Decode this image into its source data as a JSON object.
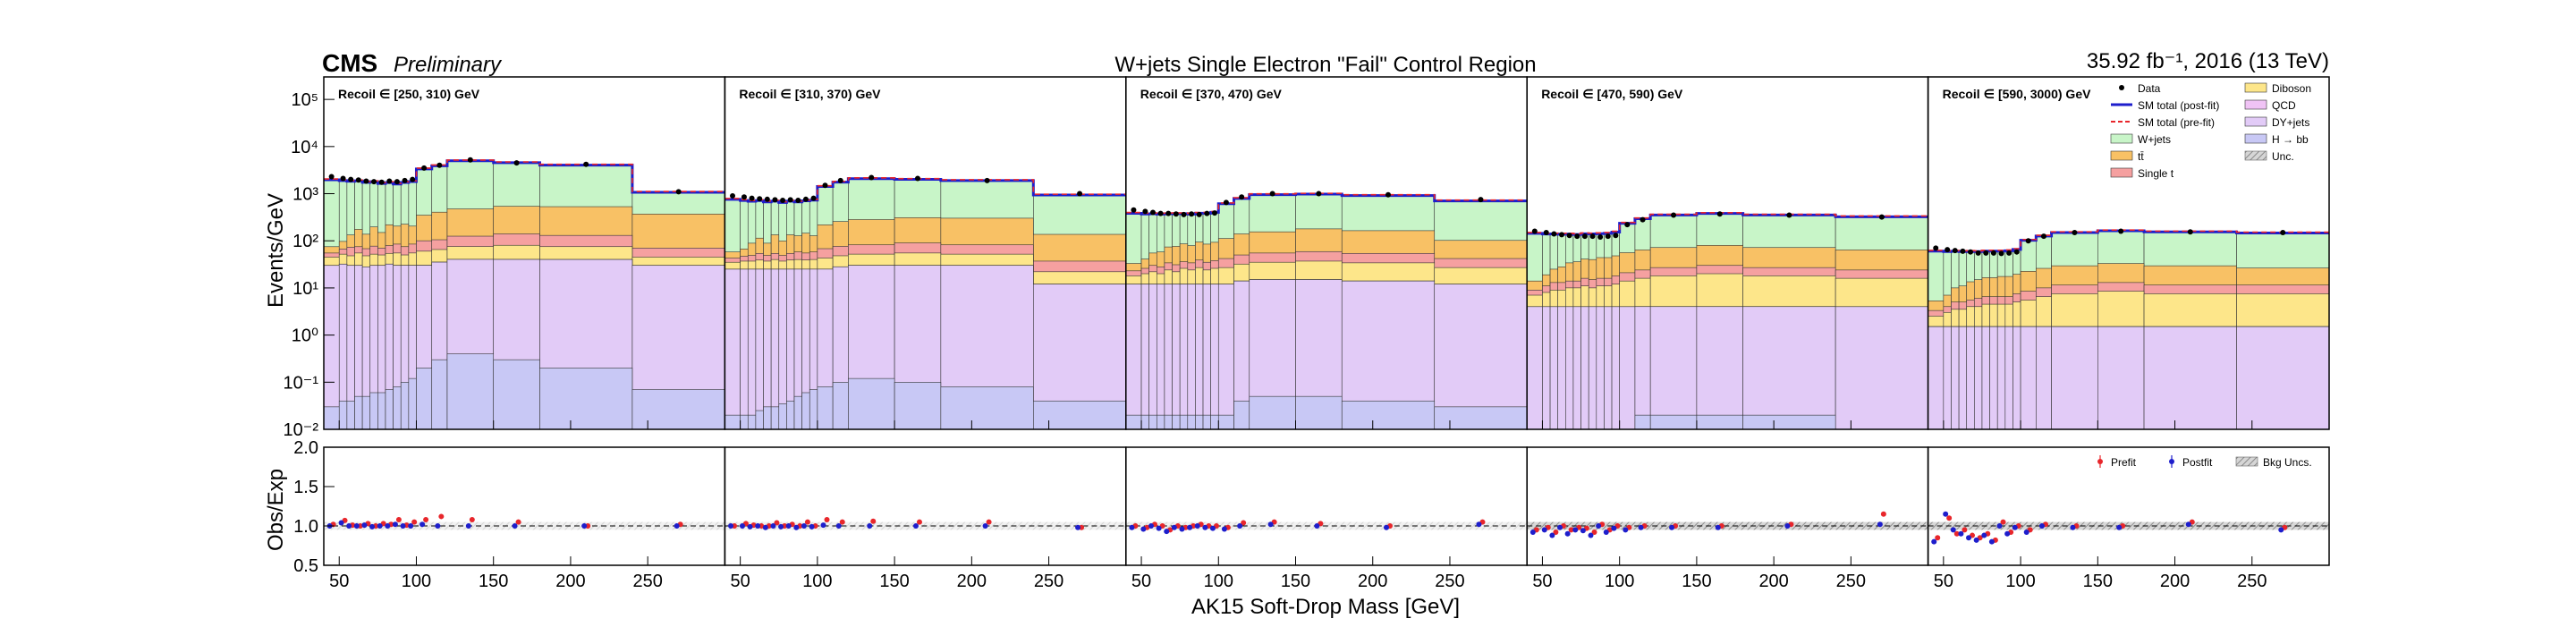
{
  "header": {
    "cms": "CMS",
    "preliminary": "Preliminary",
    "title": "W+jets Single Electron \"Fail\" Control Region",
    "lumi": "35.92 fb⁻¹, 2016 (13 TeV)"
  },
  "axes": {
    "ylabel_main": "Events/GeV",
    "ylabel_ratio": "Obs/Exp",
    "xlabel": "AK15 Soft-Drop Mass [GeV]",
    "x_ticks": [
      "50",
      "100",
      "150",
      "200",
      "250"
    ],
    "y_ticks_main": [
      "10⁻²",
      "10⁻¹",
      "10⁰",
      "10¹",
      "10²",
      "10³",
      "10⁴",
      "10⁵"
    ],
    "y_ticks_ratio": [
      "0.5",
      "1.0",
      "1.5",
      "2.0"
    ]
  },
  "legend_main": [
    {
      "label": "Data",
      "kind": "point",
      "color": "#000000"
    },
    {
      "label": "Diboson",
      "kind": "box",
      "color": "#fde68a"
    },
    {
      "label": "SM total (post-fit)",
      "kind": "line",
      "color": "#1e1ecc"
    },
    {
      "label": "QCD",
      "kind": "box",
      "color": "#f0c3f5"
    },
    {
      "label": "SM total (pre-fit)",
      "kind": "dash",
      "color": "#e8262b"
    },
    {
      "label": "DY+jets",
      "kind": "box",
      "color": "#e2cbf7"
    },
    {
      "label": "W+jets",
      "kind": "box",
      "color": "#c8f5c8"
    },
    {
      "label": "H → bb",
      "kind": "box",
      "color": "#c8c8f5"
    },
    {
      "label": "tt̄",
      "kind": "box",
      "color": "#f8c165"
    },
    {
      "label": "Unc.",
      "kind": "hatch",
      "color": "#999999"
    },
    {
      "label": "Single t",
      "kind": "box",
      "color": "#f5a0a0"
    }
  ],
  "legend_ratio": [
    {
      "label": "Prefit",
      "color": "#e8262b"
    },
    {
      "label": "Postfit",
      "color": "#1e1ecc"
    },
    {
      "label": "Bkg Uncs.",
      "color": "#999999"
    }
  ],
  "chart_data": {
    "type": "bar",
    "ylabel": "Events/GeV",
    "yscale": "log",
    "ylim": [
      0.01,
      300000
    ],
    "ratio_ylim": [
      0.5,
      2.0
    ],
    "xlim": [
      40,
      300
    ],
    "bin_edges": [
      40,
      50,
      55,
      60,
      65,
      70,
      75,
      80,
      85,
      90,
      95,
      100,
      110,
      120,
      150,
      180,
      240,
      300
    ],
    "stack_order": [
      "H → bb",
      "DY+jets",
      "QCD",
      "Diboson",
      "Single t",
      "tt̄",
      "W+jets"
    ],
    "colors": {
      "H → bb": "#c8c8f5",
      "DY+jets": "#e2cbf7",
      "QCD": "#f0c3f5",
      "Diboson": "#fde68a",
      "Single t": "#f5a0a0",
      "tt̄": "#f8c165",
      "W+jets": "#c8f5c8",
      "Data": "#000000",
      "SM total (post-fit)": "#1e1ecc",
      "SM total (pre-fit)": "#e8262b"
    },
    "panels": [
      {
        "label": "Recoil ∈ [250, 310) GeV",
        "hbb": [
          0.03,
          0.04,
          0.04,
          0.05,
          0.05,
          0.06,
          0.06,
          0.07,
          0.08,
          0.1,
          0.12,
          0.2,
          0.3,
          0.4,
          0.3,
          0.2,
          0.07
        ],
        "dy": [
          30,
          32,
          30,
          30,
          28,
          30,
          30,
          32,
          30,
          30,
          30,
          30,
          35,
          40,
          40,
          40,
          30
        ],
        "qcd": [
          0.02,
          0.02,
          0.02,
          0.02,
          0.02,
          0.02,
          0.02,
          0.02,
          0.02,
          0.02,
          0.02,
          0.02,
          0.02,
          0.02,
          0.02,
          0.02,
          0.02
        ],
        "diboson": [
          15,
          20,
          18,
          25,
          20,
          22,
          20,
          22,
          25,
          20,
          25,
          30,
          30,
          35,
          40,
          35,
          15
        ],
        "singlet": [
          10,
          15,
          25,
          20,
          20,
          25,
          20,
          25,
          30,
          25,
          30,
          40,
          40,
          50,
          60,
          55,
          25
        ],
        "ttbar": [
          20,
          30,
          60,
          100,
          70,
          120,
          80,
          140,
          120,
          150,
          120,
          250,
          300,
          350,
          400,
          400,
          300
        ],
        "wjets": [
          1900,
          1800,
          1700,
          1700,
          1600,
          1600,
          1500,
          1500,
          1400,
          1500,
          1600,
          3000,
          3500,
          4500,
          4000,
          3500,
          700
        ],
        "data": [
          2300,
          2100,
          2000,
          1950,
          1850,
          1800,
          1750,
          1850,
          1800,
          1900,
          2000,
          3500,
          4000,
          5200,
          4500,
          4200,
          1100
        ],
        "ratio_prefit": [
          1.02,
          1.07,
          1.01,
          1.0,
          1.03,
          1.0,
          1.03,
          1.02,
          1.08,
          1.01,
          1.05,
          1.08,
          1.12,
          1.08,
          1.05,
          1.0,
          1.02
        ],
        "ratio_postfit": [
          1.0,
          1.04,
          1.0,
          1.0,
          1.01,
          0.99,
          1.0,
          1.0,
          1.02,
          1.0,
          1.0,
          1.02,
          1.0,
          1.0,
          1.0,
          1.0,
          1.0
        ]
      },
      {
        "label": "Recoil ∈ [310, 370) GeV",
        "hbb": [
          0.02,
          0.02,
          0.02,
          0.025,
          0.03,
          0.03,
          0.035,
          0.04,
          0.05,
          0.06,
          0.07,
          0.08,
          0.1,
          0.12,
          0.1,
          0.08,
          0.04
        ],
        "dy": [
          25,
          25,
          25,
          25,
          25,
          25,
          25,
          25,
          25,
          25,
          25,
          25,
          28,
          30,
          30,
          30,
          12
        ],
        "qcd": [
          0.02,
          0.02,
          0.02,
          0.02,
          0.02,
          0.02,
          0.02,
          0.02,
          0.02,
          0.02,
          0.02,
          0.02,
          0.02,
          0.02,
          0.02,
          0.02,
          0.02
        ],
        "diboson": [
          10,
          12,
          12,
          14,
          12,
          15,
          12,
          14,
          15,
          14,
          15,
          18,
          20,
          22,
          25,
          22,
          10
        ],
        "singlet": [
          8,
          10,
          12,
          15,
          12,
          14,
          12,
          15,
          18,
          16,
          18,
          25,
          28,
          30,
          35,
          30,
          15
        ],
        "ttbar": [
          15,
          20,
          40,
          60,
          40,
          80,
          50,
          80,
          70,
          90,
          70,
          150,
          180,
          200,
          220,
          220,
          100
        ],
        "wjets": [
          700,
          650,
          600,
          600,
          580,
          560,
          550,
          560,
          540,
          560,
          600,
          1200,
          1500,
          1800,
          1700,
          1600,
          800
        ],
        "data": [
          900,
          850,
          800,
          780,
          760,
          740,
          720,
          740,
          720,
          760,
          800,
          1500,
          1900,
          2200,
          2100,
          1900,
          1000
        ],
        "ratio_prefit": [
          1.0,
          1.03,
          1.01,
          1.0,
          1.0,
          1.04,
          1.0,
          1.02,
          1.0,
          1.05,
          1.0,
          1.08,
          1.05,
          1.06,
          1.05,
          1.05,
          0.98
        ],
        "ratio_postfit": [
          1.0,
          1.0,
          0.99,
          1.0,
          0.98,
          1.0,
          0.99,
          1.0,
          0.98,
          1.0,
          0.99,
          1.01,
          1.0,
          1.0,
          1.0,
          1.0,
          0.98
        ]
      },
      {
        "label": "Recoil ∈ [370, 470) GeV",
        "hbb": [
          0.02,
          0.02,
          0.02,
          0.02,
          0.02,
          0.02,
          0.02,
          0.02,
          0.02,
          0.02,
          0.02,
          0.02,
          0.04,
          0.05,
          0.05,
          0.04,
          0.03
        ],
        "dy": [
          12,
          12,
          12,
          12,
          12,
          12,
          12,
          12,
          12,
          12,
          12,
          12,
          14,
          15,
          15,
          14,
          12
        ],
        "qcd": [
          0.02,
          0.02,
          0.02,
          0.02,
          0.02,
          0.02,
          0.02,
          0.02,
          0.02,
          0.02,
          0.02,
          0.02,
          0.02,
          0.02,
          0.02,
          0.02,
          0.02
        ],
        "diboson": [
          6,
          8,
          10,
          8,
          12,
          10,
          14,
          12,
          15,
          12,
          14,
          15,
          18,
          20,
          22,
          20,
          15
        ],
        "singlet": [
          5,
          6,
          8,
          8,
          10,
          9,
          10,
          10,
          12,
          11,
          12,
          15,
          18,
          20,
          22,
          20,
          15
        ],
        "ttbar": [
          10,
          15,
          25,
          30,
          40,
          45,
          50,
          45,
          55,
          50,
          55,
          70,
          90,
          100,
          120,
          110,
          60
        ],
        "wjets": [
          350,
          330,
          320,
          310,
          300,
          300,
          290,
          290,
          290,
          300,
          310,
          500,
          650,
          800,
          800,
          750,
          600
        ],
        "data": [
          450,
          420,
          400,
          380,
          380,
          370,
          360,
          370,
          360,
          380,
          390,
          650,
          850,
          1000,
          1000,
          950,
          750
        ],
        "ratio_prefit": [
          1.0,
          0.98,
          1.02,
          1.0,
          0.95,
          1.0,
          0.98,
          1.0,
          1.02,
          1.0,
          1.0,
          0.98,
          1.04,
          1.05,
          1.03,
          1.0,
          1.05
        ],
        "ratio_postfit": [
          0.98,
          0.96,
          1.0,
          0.97,
          0.93,
          0.98,
          0.96,
          0.98,
          1.0,
          0.98,
          0.97,
          0.96,
          1.0,
          1.02,
          1.0,
          0.98,
          1.02
        ]
      },
      {
        "label": "Recoil ∈ [470, 590) GeV",
        "hbb": [
          0.01,
          0.01,
          0.01,
          0.01,
          0.01,
          0.01,
          0.01,
          0.01,
          0.01,
          0.01,
          0.01,
          0.01,
          0.02,
          0.02,
          0.02,
          0.02,
          0.01
        ],
        "dy": [
          4,
          4,
          4,
          4,
          4,
          4,
          4,
          4,
          4,
          4,
          4,
          4,
          4,
          4,
          4,
          4,
          4
        ],
        "qcd": [
          0.01,
          0.01,
          0.01,
          0.01,
          0.01,
          0.01,
          0.01,
          0.01,
          0.01,
          0.01,
          0.01,
          0.01,
          0.01,
          0.01,
          0.01,
          0.01,
          0.01
        ],
        "diboson": [
          3,
          4,
          5,
          5,
          6,
          6,
          7,
          6,
          7,
          7,
          8,
          10,
          12,
          14,
          16,
          14,
          12
        ],
        "singlet": [
          2,
          3,
          4,
          4,
          4,
          4,
          5,
          5,
          5,
          5,
          6,
          7,
          8,
          9,
          10,
          9,
          8
        ],
        "ttbar": [
          5,
          8,
          12,
          15,
          20,
          22,
          25,
          25,
          28,
          28,
          30,
          35,
          40,
          45,
          50,
          45,
          40
        ],
        "wjets": [
          130,
          120,
          115,
          110,
          105,
          100,
          100,
          100,
          98,
          100,
          105,
          180,
          230,
          280,
          300,
          280,
          260
        ],
        "data": [
          160,
          150,
          140,
          135,
          130,
          125,
          125,
          125,
          120,
          125,
          130,
          220,
          280,
          350,
          370,
          350,
          320
        ],
        "ratio_prefit": [
          0.95,
          0.98,
          0.92,
          1.0,
          0.95,
          0.98,
          0.97,
          0.92,
          1.02,
          0.95,
          1.0,
          0.98,
          1.0,
          1.0,
          1.0,
          1.02,
          1.15
        ],
        "ratio_postfit": [
          0.92,
          0.95,
          0.88,
          0.98,
          0.9,
          0.95,
          0.94,
          0.88,
          1.0,
          0.92,
          0.97,
          0.95,
          0.98,
          0.98,
          0.98,
          1.0,
          1.02
        ]
      },
      {
        "label": "Recoil ∈ [590, 3000) GeV",
        "hbb": [
          0.01,
          0.01,
          0.01,
          0.01,
          0.01,
          0.01,
          0.01,
          0.01,
          0.01,
          0.01,
          0.01,
          0.01,
          0.01,
          0.01,
          0.01,
          0.01,
          0.01
        ],
        "dy": [
          1.5,
          1.5,
          1.5,
          1.5,
          1.5,
          1.5,
          1.5,
          1.5,
          1.5,
          1.5,
          1.5,
          1.5,
          1.5,
          1.5,
          1.5,
          1.5,
          1.5
        ],
        "qcd": [
          0.01,
          0.01,
          0.01,
          0.01,
          0.01,
          0.01,
          0.01,
          0.01,
          0.01,
          0.01,
          0.01,
          0.01,
          0.01,
          0.01,
          0.01,
          0.01,
          0.01
        ],
        "diboson": [
          1,
          1.5,
          2,
          2,
          2.5,
          2.5,
          3,
          3,
          3,
          3,
          3.5,
          4,
          5,
          6,
          7,
          6,
          6
        ],
        "singlet": [
          0.8,
          1,
          1.5,
          1.5,
          1.5,
          2,
          2,
          2,
          2,
          2,
          2.5,
          3,
          3.5,
          4,
          4.5,
          4,
          4
        ],
        "ttbar": [
          2,
          3,
          5,
          6,
          8,
          9,
          10,
          10,
          11,
          11,
          12,
          14,
          16,
          18,
          20,
          18,
          15
        ],
        "wjets": [
          55,
          52,
          50,
          48,
          46,
          44,
          44,
          44,
          43,
          44,
          46,
          80,
          100,
          120,
          130,
          125,
          120
        ],
        "data": [
          70,
          65,
          62,
          60,
          58,
          55,
          55,
          55,
          54,
          55,
          58,
          100,
          125,
          150,
          160,
          155,
          150
        ],
        "ratio_prefit": [
          0.85,
          1.1,
          0.9,
          0.95,
          0.88,
          0.85,
          0.9,
          0.82,
          1.05,
          0.92,
          1.0,
          0.95,
          1.02,
          1.0,
          1.0,
          1.05,
          0.98
        ],
        "ratio_postfit": [
          0.8,
          1.15,
          0.95,
          0.9,
          0.85,
          0.82,
          0.88,
          0.8,
          1.0,
          0.9,
          0.98,
          0.92,
          1.0,
          0.98,
          0.98,
          1.02,
          0.95
        ]
      }
    ]
  }
}
